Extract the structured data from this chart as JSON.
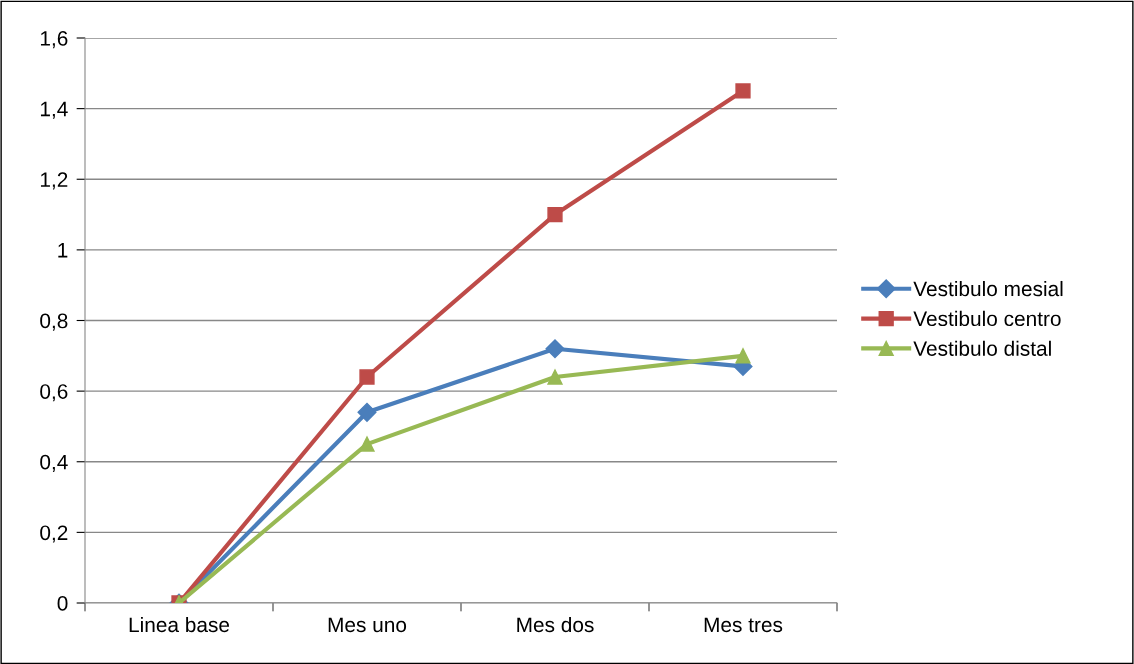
{
  "chart_data": {
    "type": "line",
    "categories": [
      "Linea base",
      "Mes uno",
      "Mes dos",
      "Mes tres"
    ],
    "series": [
      {
        "name": "Vestibulo mesial",
        "color": "#4a7ebb",
        "marker": "diamond",
        "values": [
          0,
          0.54,
          0.72,
          0.67
        ]
      },
      {
        "name": "Vestibulo centro",
        "color": "#be4b48",
        "marker": "square",
        "values": [
          0,
          0.64,
          1.1,
          1.45
        ]
      },
      {
        "name": "Vestibulo distal",
        "color": "#98b954",
        "marker": "triangle",
        "values": [
          0,
          0.45,
          0.64,
          0.7
        ]
      }
    ],
    "ylim": [
      0,
      1.6
    ],
    "yticks": [
      0,
      {
        "value": 0.2,
        "label": "0,2"
      },
      {
        "value": 0.4,
        "label": "0,4"
      },
      {
        "value": 0.6,
        "label": "0,6"
      },
      {
        "value": 0.8,
        "label": "0,8"
      },
      1,
      {
        "value": 1.2,
        "label": "1,2"
      },
      {
        "value": 1.4,
        "label": "1,4"
      },
      {
        "value": 1.6,
        "label": "1,6"
      }
    ],
    "grid": "y",
    "legend": "right",
    "line_style": "solid"
  }
}
